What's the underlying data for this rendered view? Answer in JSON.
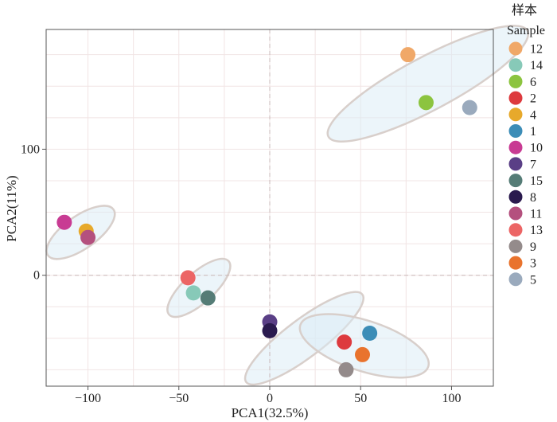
{
  "chart_data": {
    "type": "scatter",
    "title": "",
    "xlabel": "PCA1(32.5%)",
    "ylabel": "PCA2(11%)",
    "xlim": [
      -123,
      123
    ],
    "ylim": [
      -88,
      195
    ],
    "x_ticks": [
      -100,
      -50,
      0,
      50,
      100
    ],
    "y_ticks": [
      0,
      100
    ],
    "x_tick_labels": [
      "−100",
      "−50",
      "0",
      "50",
      "100"
    ],
    "y_tick_labels": [
      "0",
      "100"
    ],
    "grid": true,
    "reference_lines": {
      "x": 0,
      "y": 0,
      "style": "dashed"
    },
    "legend": {
      "title_line1": "样本",
      "title_line2": "Sample",
      "position": "right",
      "entries": [
        {
          "label": "12",
          "color": "#f0a868"
        },
        {
          "label": "14",
          "color": "#87c9b8"
        },
        {
          "label": "6",
          "color": "#8cc43f"
        },
        {
          "label": "2",
          "color": "#dd3a3e"
        },
        {
          "label": "4",
          "color": "#e7a92b"
        },
        {
          "label": "1",
          "color": "#3c8db7"
        },
        {
          "label": "10",
          "color": "#c83b93"
        },
        {
          "label": "7",
          "color": "#5a3f86"
        },
        {
          "label": "15",
          "color": "#557c76"
        },
        {
          "label": "8",
          "color": "#2a1a4e"
        },
        {
          "label": "11",
          "color": "#b4507e"
        },
        {
          "label": "13",
          "color": "#ec6565"
        },
        {
          "label": "9",
          "color": "#948b8b"
        },
        {
          "label": "3",
          "color": "#e9732d"
        },
        {
          "label": "5",
          "color": "#9aaabd"
        }
      ]
    },
    "points": [
      {
        "sample": "12",
        "x": 76,
        "y": 175
      },
      {
        "sample": "6",
        "x": 86,
        "y": 137
      },
      {
        "sample": "5",
        "x": 110,
        "y": 133
      },
      {
        "sample": "10",
        "x": -113,
        "y": 42
      },
      {
        "sample": "4",
        "x": -101,
        "y": 35
      },
      {
        "sample": "11",
        "x": -100,
        "y": 30
      },
      {
        "sample": "13",
        "x": -45,
        "y": -2
      },
      {
        "sample": "14",
        "x": -42,
        "y": -14
      },
      {
        "sample": "15",
        "x": -34,
        "y": -18
      },
      {
        "sample": "7",
        "x": 0,
        "y": -37
      },
      {
        "sample": "8",
        "x": 0,
        "y": -44
      },
      {
        "sample": "2",
        "x": 41,
        "y": -53
      },
      {
        "sample": "1",
        "x": 55,
        "y": -46
      },
      {
        "sample": "3",
        "x": 51,
        "y": -63
      },
      {
        "sample": "9",
        "x": 42,
        "y": -75
      }
    ],
    "confidence_ellipses": [
      {
        "group": "upper-right",
        "cx": 87,
        "cy": 152,
        "rx": 62,
        "ry": 21,
        "angle": -28
      },
      {
        "group": "left",
        "cx": -104,
        "cy": 34,
        "rx": 22,
        "ry": 13,
        "angle": -35
      },
      {
        "group": "center-left",
        "cx": -39,
        "cy": -10,
        "rx": 22,
        "ry": 12,
        "angle": -42
      },
      {
        "group": "center",
        "cx": 19,
        "cy": -50,
        "rx": 40,
        "ry": 15,
        "angle": -37
      },
      {
        "group": "lower-right",
        "cx": 52,
        "cy": -56,
        "rx": 37,
        "ry": 20,
        "angle": 18
      }
    ]
  }
}
